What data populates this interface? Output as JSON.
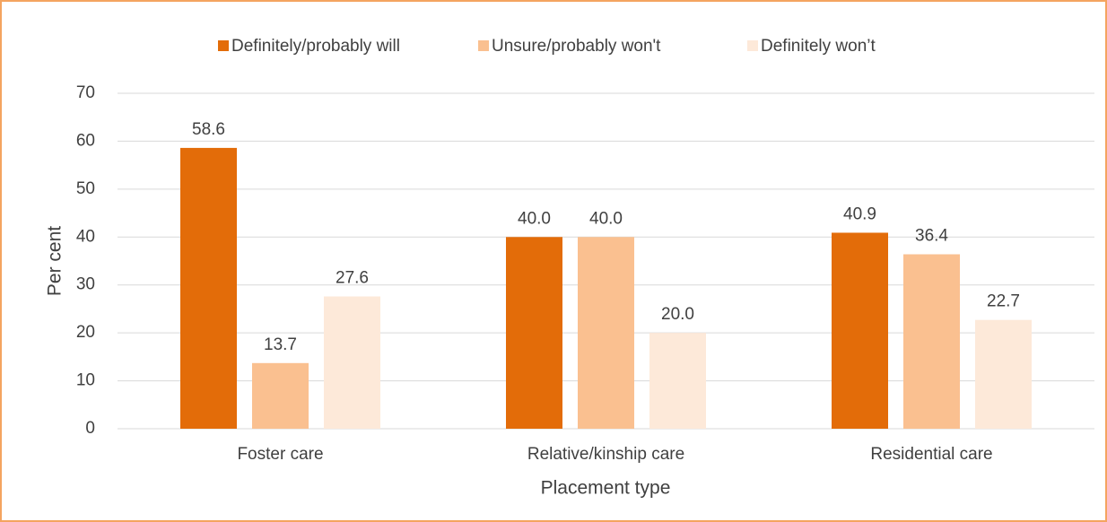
{
  "chart_data": {
    "type": "bar",
    "categories": [
      "Foster care",
      "Relative/kinship care",
      "Residential care"
    ],
    "series": [
      {
        "name": "Definitely/probably will",
        "color": "#e36c09",
        "values": [
          58.6,
          40,
          40.9
        ],
        "value_labels": [
          "58.6",
          "40.0",
          "40.9"
        ]
      },
      {
        "name": "Unsure/probably won't",
        "color": "#fac090",
        "values": [
          13.7,
          40,
          36.4
        ],
        "value_labels": [
          "13.7",
          "40.0",
          "36.4"
        ]
      },
      {
        "name": "Definitely won’t",
        "color": "#fde9d9",
        "values": [
          27.6,
          20,
          22.7
        ],
        "value_labels": [
          "27.6",
          "20.0",
          "22.7"
        ]
      }
    ],
    "ylabel": "Per cent",
    "xlabel": "Placement type",
    "ylim": [
      0,
      70
    ],
    "yticks": [
      0,
      10,
      20,
      30,
      40,
      50,
      60,
      70
    ],
    "grid": true,
    "legend": "top"
  }
}
